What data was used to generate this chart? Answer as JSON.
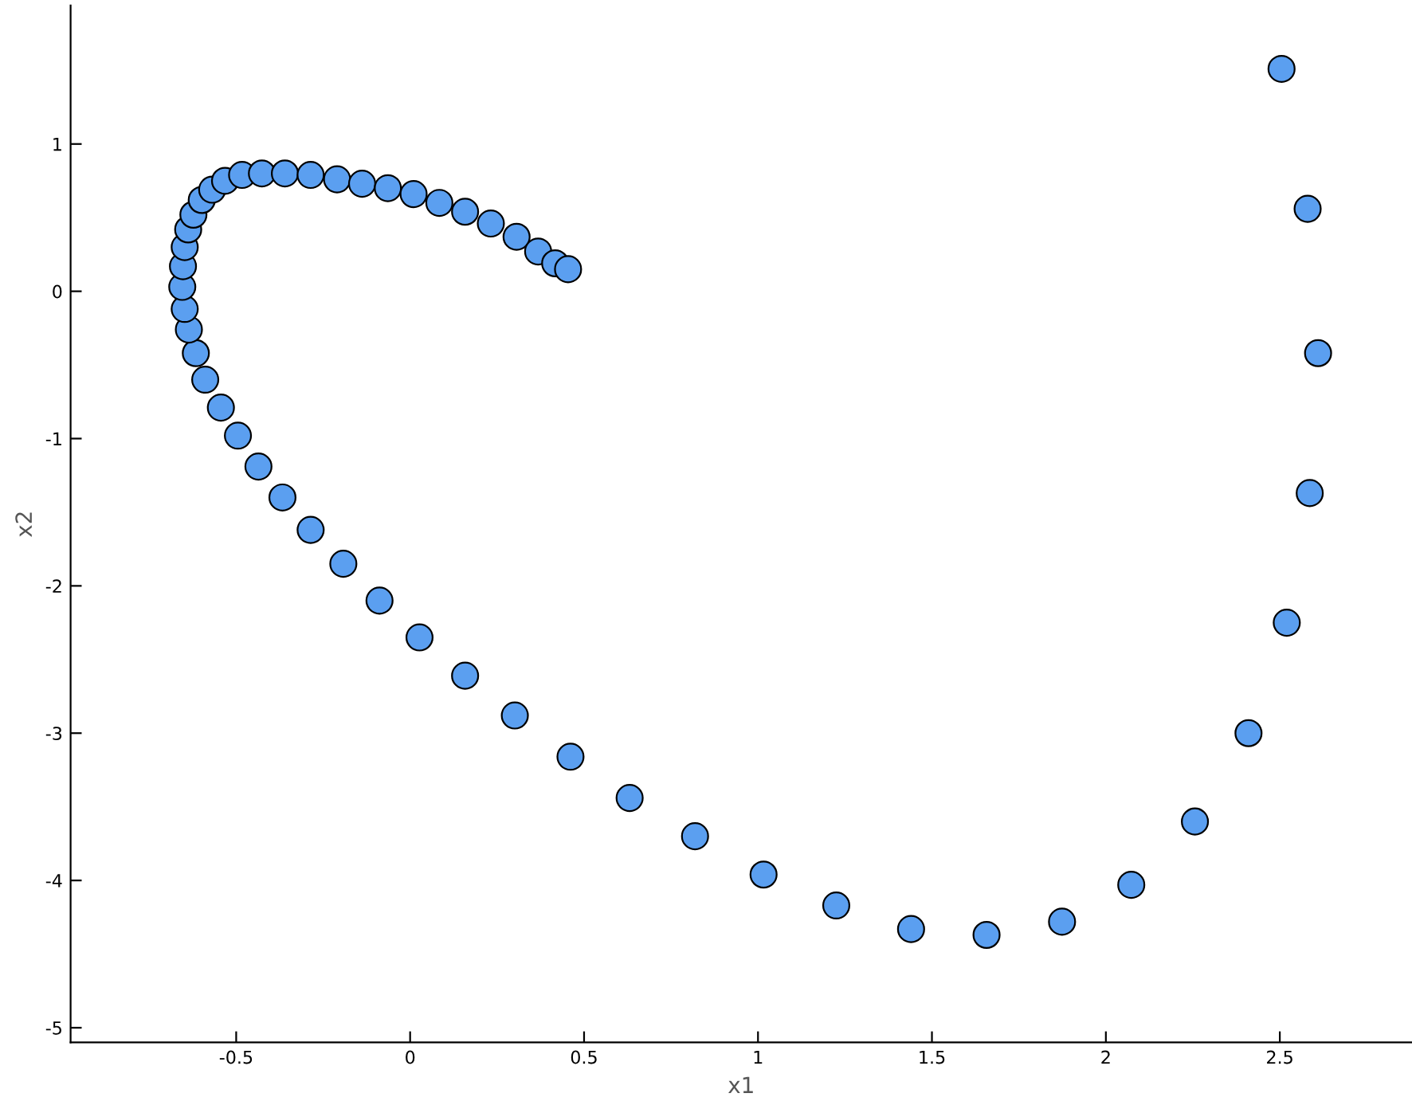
{
  "chart_data": {
    "type": "scatter",
    "xlabel": "x1",
    "ylabel": "x2",
    "x": [
      2.505,
      2.58,
      2.61,
      2.586,
      2.52,
      2.41,
      2.256,
      2.073,
      1.874,
      1.657,
      1.44,
      1.225,
      1.016,
      0.819,
      0.631,
      0.461,
      0.301,
      0.158,
      0.027,
      -0.088,
      -0.192,
      -0.286,
      -0.367,
      -0.436,
      -0.495,
      -0.544,
      -0.589,
      -0.616,
      -0.636,
      -0.648,
      -0.655,
      -0.653,
      -0.648,
      -0.638,
      -0.623,
      -0.599,
      -0.569,
      -0.532,
      -0.483,
      -0.426,
      -0.36,
      -0.286,
      -0.21,
      -0.138,
      -0.064,
      0.01,
      0.084,
      0.158,
      0.232,
      0.306,
      0.368,
      0.417,
      0.454
    ],
    "series": [
      {
        "color": "#5b9ff0",
        "values": [
          1.51,
          0.56,
          -0.42,
          -1.37,
          -2.25,
          -3.0,
          -3.6,
          -4.03,
          -4.28,
          -4.37,
          -4.33,
          -4.17,
          -3.96,
          -3.7,
          -3.44,
          -3.16,
          -2.88,
          -2.61,
          -2.35,
          -2.1,
          -1.85,
          -1.62,
          -1.4,
          -1.19,
          -0.98,
          -0.79,
          -0.6,
          -0.42,
          -0.26,
          -0.12,
          0.03,
          0.17,
          0.3,
          0.42,
          0.52,
          0.62,
          0.69,
          0.75,
          0.79,
          0.8,
          0.8,
          0.79,
          0.76,
          0.73,
          0.7,
          0.66,
          0.6,
          0.54,
          0.46,
          0.37,
          0.27,
          0.19,
          0.15
        ]
      }
    ],
    "xlim": [
      -0.976,
      2.88
    ],
    "ylim": [
      -5.1,
      1.94
    ],
    "xticks": [
      -0.5,
      0,
      0.5,
      1,
      1.5,
      2,
      2.5
    ],
    "yticks": [
      -5,
      -4,
      -3,
      -2,
      -1,
      0,
      1
    ],
    "marker": "circle",
    "grid": false
  }
}
